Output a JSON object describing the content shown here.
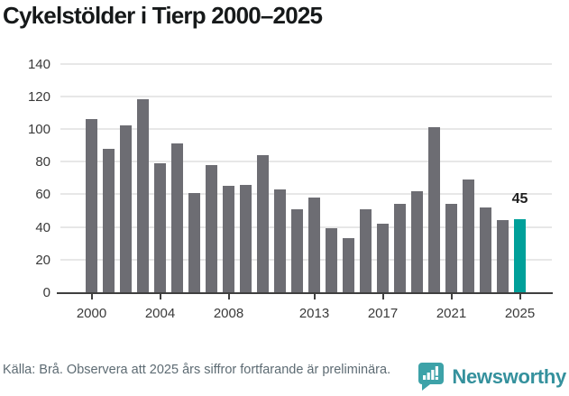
{
  "title": "Cykelstölder i Tierp 2000–2025",
  "chart_data": {
    "type": "bar",
    "title": "Cykelstölder i Tierp 2000–2025",
    "x": [
      2000,
      2001,
      2002,
      2003,
      2004,
      2005,
      2006,
      2007,
      2008,
      2009,
      2010,
      2011,
      2012,
      2013,
      2014,
      2015,
      2016,
      2017,
      2018,
      2019,
      2020,
      2021,
      2022,
      2023,
      2024,
      2025
    ],
    "values": [
      106,
      88,
      102,
      118,
      79,
      91,
      61,
      78,
      65,
      66,
      84,
      63,
      51,
      58,
      39,
      33,
      51,
      42,
      54,
      62,
      101,
      54,
      69,
      52,
      44,
      45
    ],
    "ylim": [
      0,
      140
    ],
    "yticks": [
      0,
      20,
      40,
      60,
      80,
      100,
      120,
      140
    ],
    "xticks": [
      {
        "year": 2000,
        "label": "2000"
      },
      {
        "year": 2004,
        "label": "2004"
      },
      {
        "year": 2008,
        "label": "2008"
      },
      {
        "year": 2013,
        "label": "2013"
      },
      {
        "year": 2017,
        "label": "2017"
      },
      {
        "year": 2021,
        "label": "2021"
      },
      {
        "year": 2025,
        "label": "2025"
      }
    ],
    "grid": true,
    "legend": "none",
    "bar_color": "#6d6d73",
    "highlight_color": "#00a09a",
    "highlight_year": 2025,
    "annotation": {
      "year": 2025,
      "label": "45"
    }
  },
  "footer": {
    "source_text": "Källa: Brå. Observera att 2025 års siffror fortfarande är preliminära."
  },
  "branding": {
    "logo_text": "Newsworthy",
    "wordmark_color": "#35919d",
    "icon_color": "#3da2a8",
    "icon": "bar-chart-speech-bubble-icon"
  }
}
